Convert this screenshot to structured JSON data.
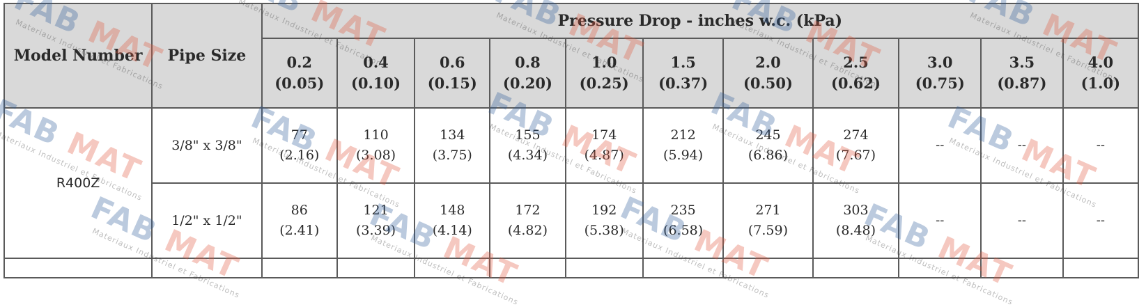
{
  "table": {
    "model_header": "Model Number",
    "pipe_header": "Pipe Size",
    "pressure_header": "Pressure Drop - inches w.c. (kPa)",
    "columns": [
      {
        "inches": "0.2",
        "kpa": "(0.05)"
      },
      {
        "inches": "0.4",
        "kpa": "(0.10)"
      },
      {
        "inches": "0.6",
        "kpa": "(0.15)"
      },
      {
        "inches": "0.8",
        "kpa": "(0.20)"
      },
      {
        "inches": "1.0",
        "kpa": "(0.25)"
      },
      {
        "inches": "1.5",
        "kpa": "(0.37)"
      },
      {
        "inches": "2.0",
        "kpa": "(0.50)"
      },
      {
        "inches": "2.5",
        "kpa": "(0.62)"
      },
      {
        "inches": "3.0",
        "kpa": "(0.75)"
      },
      {
        "inches": "3.5",
        "kpa": "(0.87)"
      },
      {
        "inches": "4.0",
        "kpa": "(1.0)"
      }
    ],
    "model": "R400Z",
    "rows": [
      {
        "pipe": "3/8\" x 3/8\"",
        "cells": [
          {
            "v": "77",
            "k": "(2.16)"
          },
          {
            "v": "110",
            "k": "(3.08)"
          },
          {
            "v": "134",
            "k": "(3.75)"
          },
          {
            "v": "155",
            "k": "(4.34)"
          },
          {
            "v": "174",
            "k": "(4.87)"
          },
          {
            "v": "212",
            "k": "(5.94)"
          },
          {
            "v": "245",
            "k": "(6.86)"
          },
          {
            "v": "274",
            "k": "(7.67)"
          },
          {
            "v": "--"
          },
          {
            "v": "--"
          },
          {
            "v": "--"
          }
        ]
      },
      {
        "pipe": "1/2\" x 1/2\"",
        "cells": [
          {
            "v": "86",
            "k": "(2.41)"
          },
          {
            "v": "121",
            "k": "(3.39)"
          },
          {
            "v": "148",
            "k": "(4.14)"
          },
          {
            "v": "172",
            "k": "(4.82)"
          },
          {
            "v": "192",
            "k": "(5.38)"
          },
          {
            "v": "235",
            "k": "(6.58)"
          },
          {
            "v": "271",
            "k": "(7.59)"
          },
          {
            "v": "303",
            "k": "(8.48)"
          },
          {
            "v": "--"
          },
          {
            "v": "--"
          },
          {
            "v": "--"
          }
        ]
      }
    ]
  },
  "watermark": {
    "logo_left": "FAB",
    "logo_right": "MAT",
    "tagline": "Materiaux Industriel et Fabrications",
    "colors": {
      "fab": "#2e5d9a",
      "mat": "#e2583e"
    }
  }
}
